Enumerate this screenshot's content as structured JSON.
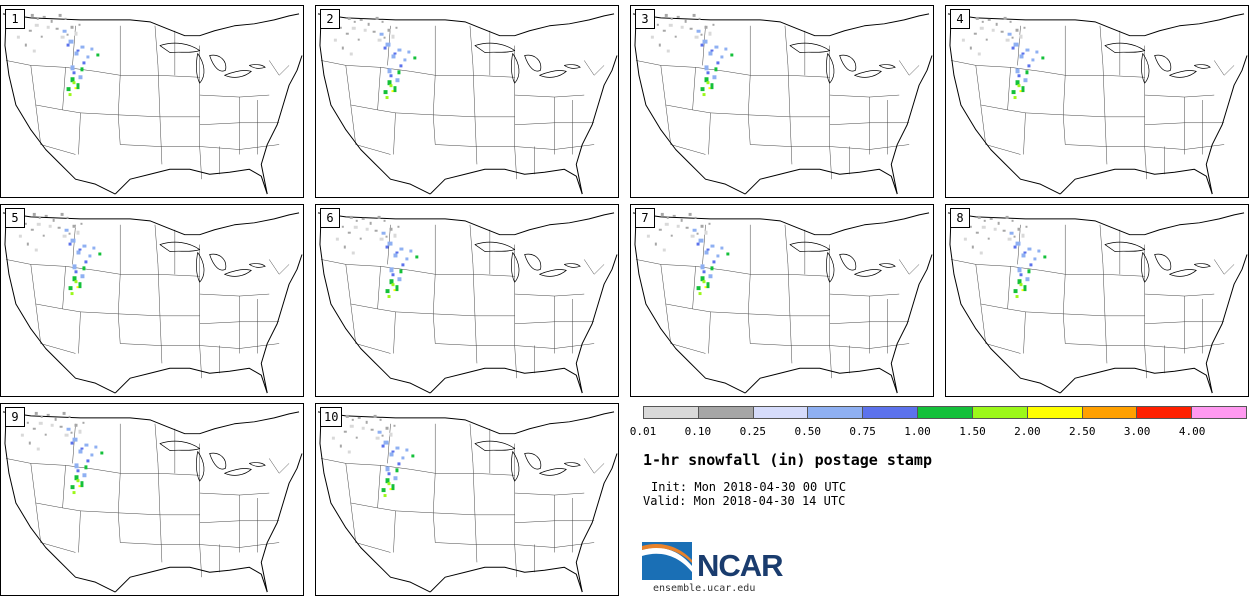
{
  "panels": [
    {
      "label": "1"
    },
    {
      "label": "2"
    },
    {
      "label": "3"
    },
    {
      "label": "4"
    },
    {
      "label": "5"
    },
    {
      "label": "6"
    },
    {
      "label": "7"
    },
    {
      "label": "8"
    },
    {
      "label": "9"
    },
    {
      "label": "10"
    }
  ],
  "legend": {
    "ticks": [
      "0.01",
      "0.10",
      "0.25",
      "0.50",
      "0.75",
      "1.00",
      "1.50",
      "2.00",
      "2.50",
      "3.00",
      "4.00"
    ],
    "colors": [
      "#d9d9d9",
      "#a6a6a6",
      "#d6dcfb",
      "#8fb0f2",
      "#5c72ec",
      "#14c03a",
      "#9cf81a",
      "#ffff00",
      "#ffa000",
      "#ff2000",
      "#ff99f0"
    ]
  },
  "info": {
    "title": "1-hr snowfall (in) postage stamp",
    "init": "Init: Mon 2018-04-30 00 UTC",
    "valid": "Valid: Mon 2018-04-30 14 UTC"
  },
  "logo": {
    "name": "NCAR",
    "site": "ensemble.ucar.edu",
    "colors": {
      "wave_blue": "#1a6fb5",
      "wave_orange": "#e8822b",
      "word": "#1a3c6e"
    }
  }
}
